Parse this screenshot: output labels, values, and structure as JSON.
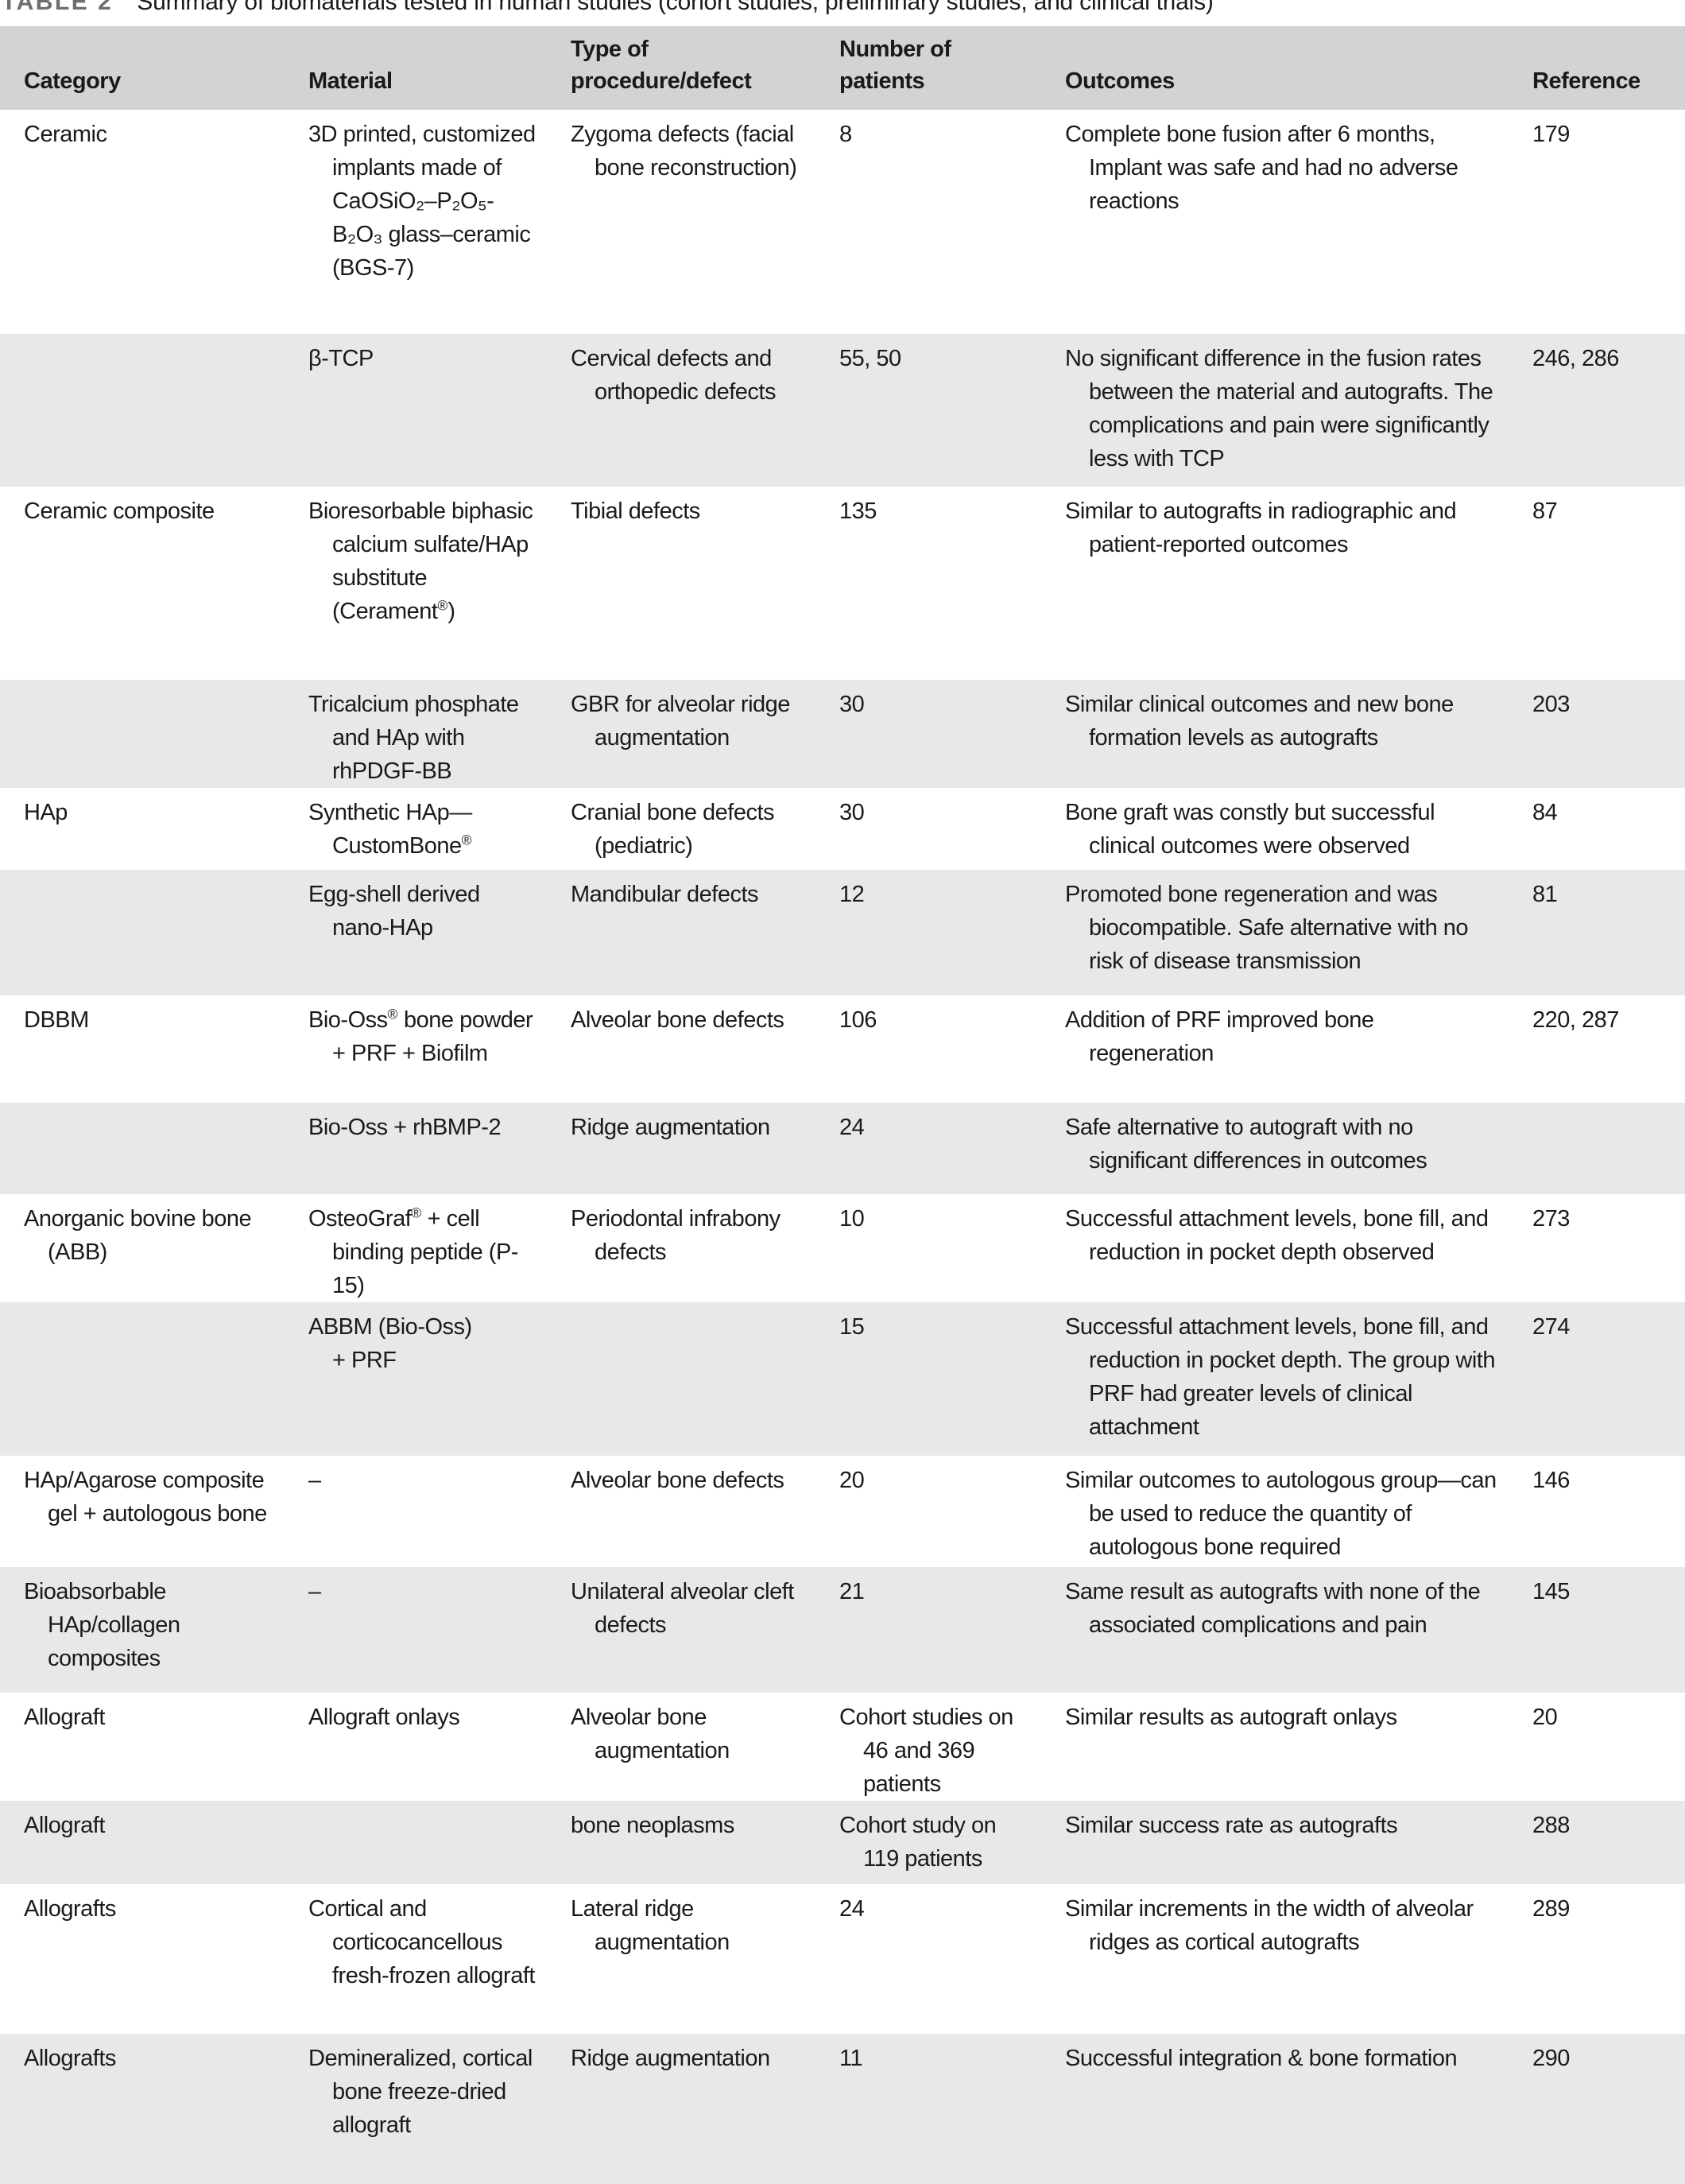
{
  "title": {
    "label": "TABLE 2",
    "text": "Summary of biomaterials tested in human studies (cohort studies, preliminary studies, and clinical trials)"
  },
  "colors": {
    "header_bg": "#d3d3d3",
    "stripe_bg": "#e8e8e8",
    "title_label": "#6e6e6e",
    "text": "#1a1a1a"
  },
  "table": {
    "headers": [
      "Category",
      "Material",
      "Type of procedure/defect",
      "Number of patients",
      "Outcomes",
      "Reference"
    ],
    "rows": [
      {
        "category": "Ceramic",
        "material": "3D printed, customized implants made of CaOSiO₂–P₂O₅-B₂O₃ glass–ceramic (BGS-7)",
        "procedure": "Zygoma defects (facial bone reconstruction)",
        "patients": "8",
        "outcomes": "Complete bone fusion after 6 months, Implant was safe and had no adverse reactions",
        "reference": "179",
        "shaded": false
      },
      {
        "category": "",
        "material": "β-TCP",
        "procedure": "Cervical defects and orthopedic defects",
        "patients": "55, 50",
        "outcomes": "No significant difference in the fusion rates between the material and autografts. The complications and pain were significantly less with TCP",
        "reference": "246, 286",
        "shaded": true
      },
      {
        "category": "Ceramic composite",
        "material": "Bioresorbable biphasic calcium sulfate/HAp substitute (Cerament®)",
        "procedure": "Tibial defects",
        "patients": "135",
        "outcomes": "Similar to autografts in radiographic and patient-reported outcomes",
        "reference": "87",
        "shaded": false
      },
      {
        "category": "",
        "material": "Tricalcium phosphate and HAp with rhPDGF-BB",
        "procedure": "GBR for alveolar ridge augmentation",
        "patients": "30",
        "outcomes": "Similar clinical outcomes and new bone formation levels as autografts",
        "reference": "203",
        "shaded": true
      },
      {
        "category": "HAp",
        "material": "Synthetic HAp—CustomBone®",
        "procedure": "Cranial bone defects (pediatric)",
        "patients": "30",
        "outcomes": "Bone graft was constly but successful clinical outcomes were observed",
        "reference": "84",
        "shaded": false
      },
      {
        "category": "",
        "material": "Egg-shell derived nano-HAp",
        "procedure": "Mandibular defects",
        "patients": "12",
        "outcomes": "Promoted bone regeneration and was biocompatible. Safe alternative with no risk of disease transmission",
        "reference": "81",
        "shaded": true
      },
      {
        "category": "DBBM",
        "material": "Bio-Oss® bone powder + PRF + Biofilm",
        "procedure": "Alveolar bone defects",
        "patients": "106",
        "outcomes": "Addition of PRF improved bone regeneration",
        "reference": "220, 287",
        "shaded": false
      },
      {
        "category": "",
        "material": "Bio-Oss + rhBMP-2",
        "procedure": "Ridge augmentation",
        "patients": "24",
        "outcomes": "Safe alternative to autograft with no significant differences in outcomes",
        "reference": "",
        "shaded": true
      },
      {
        "category": "Anorganic bovine bone (ABB)",
        "material": "OsteoGraf® + cell binding peptide (P-15)",
        "procedure": "Periodontal infrabony defects",
        "patients": "10",
        "outcomes": "Successful attachment levels, bone fill, and reduction in pocket depth observed",
        "reference": "273",
        "shaded": false
      },
      {
        "category": "",
        "material": "ABBM (Bio-Oss) + PRF",
        "procedure": "",
        "patients": "15",
        "outcomes": "Successful attachment levels, bone fill, and reduction in pocket depth. The group with PRF had greater levels of clinical attachment",
        "reference": "274",
        "shaded": true
      },
      {
        "category": "HAp/Agarose composite gel + autologous bone",
        "material": "–",
        "procedure": "Alveolar bone defects",
        "patients": "20",
        "outcomes": "Similar outcomes to autologous group—can be used to reduce the quantity of autologous bone required",
        "reference": "146",
        "shaded": false
      },
      {
        "category": "Bioabsorbable HAp/collagen composites",
        "material": "–",
        "procedure": "Unilateral alveolar cleft defects",
        "patients": "21",
        "outcomes": "Same result as autografts with none of the associated complications and pain",
        "reference": "145",
        "shaded": true
      },
      {
        "category": "Allograft",
        "material": "Allograft onlays",
        "procedure": "Alveolar bone augmentation",
        "patients": "Cohort studies on 46 and 369 patients",
        "outcomes": "Similar results as autograft onlays",
        "reference": "20",
        "shaded": false
      },
      {
        "category": "Allograft",
        "material": "",
        "procedure": "bone neoplasms",
        "patients": "Cohort study on 119 patients",
        "outcomes": "Similar success rate as autografts",
        "reference": "288",
        "shaded": true
      },
      {
        "category": "Allografts",
        "material": "Cortical and corticocancellous fresh-frozen allograft",
        "procedure": "Lateral ridge augmentation",
        "patients": "24",
        "outcomes": "Similar increments in the width of alveolar ridges as cortical autografts",
        "reference": "289",
        "shaded": false
      },
      {
        "category": "Allografts",
        "material": "Demineralized, cortical bone freeze-dried allograft",
        "procedure": "Ridge augmentation",
        "patients": "11",
        "outcomes": "Successful integration & bone formation",
        "reference": "290",
        "shaded": true
      }
    ]
  }
}
